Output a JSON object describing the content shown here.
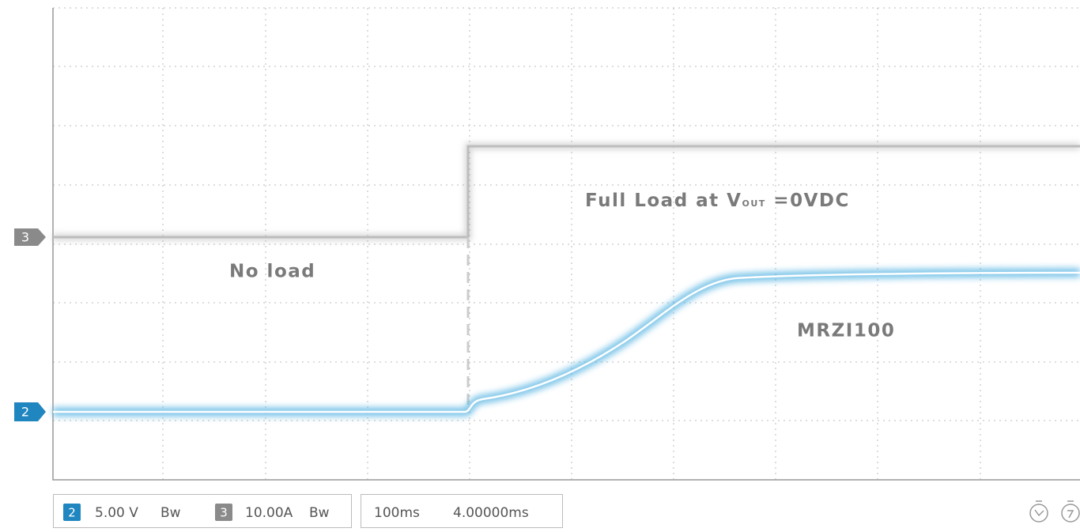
{
  "markers": {
    "ch3": "3",
    "ch2": "2"
  },
  "annotations": {
    "no_load": "No load",
    "full_load_prefix": "Full Load at V",
    "full_load_sub": "OUT",
    "full_load_suffix": " =0VDC",
    "model": "MRZI100"
  },
  "status": {
    "ch2": {
      "id": "2",
      "scale": "5.00 V",
      "bw": "Bw"
    },
    "ch3": {
      "id": "3",
      "scale": "10.00A",
      "bw": "Bw"
    },
    "timebase": "100ms",
    "offset": "4.00000ms"
  }
}
